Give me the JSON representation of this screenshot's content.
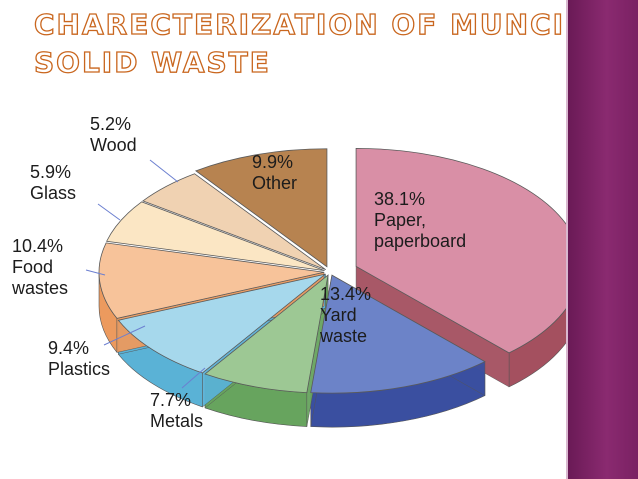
{
  "title": {
    "line1": "CHARECTERIZATION OF MUNCIPAL",
    "line2": "SOLID WASTE"
  },
  "colors": {
    "title_fill": "#ffffff",
    "title_outline": "#c9661e",
    "side_bar": "#7a2163"
  },
  "chart_data": {
    "type": "pie",
    "style": "3d-exploded",
    "slices": [
      {
        "name": "Paper, paperboard",
        "value": 38.1,
        "pct_label": "38.1%",
        "name_lines": [
          "Paper,",
          "paperboard"
        ],
        "color": "#d98fa6",
        "side_color": "#a4505f"
      },
      {
        "name": "Yard waste",
        "value": 13.4,
        "pct_label": "13.4%",
        "name_lines": [
          "Yard",
          "waste"
        ],
        "color": "#6c83c8",
        "side_color": "#3a4fa0"
      },
      {
        "name": "Metals",
        "value": 7.7,
        "pct_label": "7.7%",
        "name_lines": [
          "Metals"
        ],
        "color": "#9dc894",
        "side_color": "#67a45e"
      },
      {
        "name": "Plastics",
        "value": 9.4,
        "pct_label": "9.4%",
        "name_lines": [
          "Plastics"
        ],
        "color": "#a6d8ec",
        "side_color": "#5ab2d6"
      },
      {
        "name": "Food wastes",
        "value": 10.4,
        "pct_label": "10.4%",
        "name_lines": [
          "Food",
          "wastes"
        ],
        "color": "#f7c39a",
        "side_color": "#ec9a5e"
      },
      {
        "name": "Glass",
        "value": 5.9,
        "pct_label": "5.9%",
        "name_lines": [
          "Glass"
        ],
        "color": "#fbe6c4",
        "side_color": "#efc98a"
      },
      {
        "name": "Wood",
        "value": 5.2,
        "pct_label": "5.2%",
        "name_lines": [
          "Wood"
        ],
        "color": "#f0d2b2",
        "side_color": "#cf9e73"
      },
      {
        "name": "Other",
        "value": 9.9,
        "pct_label": "9.9%",
        "name_lines": [
          "Other"
        ],
        "color": "#b78350",
        "side_color": "#7c5128"
      }
    ]
  }
}
